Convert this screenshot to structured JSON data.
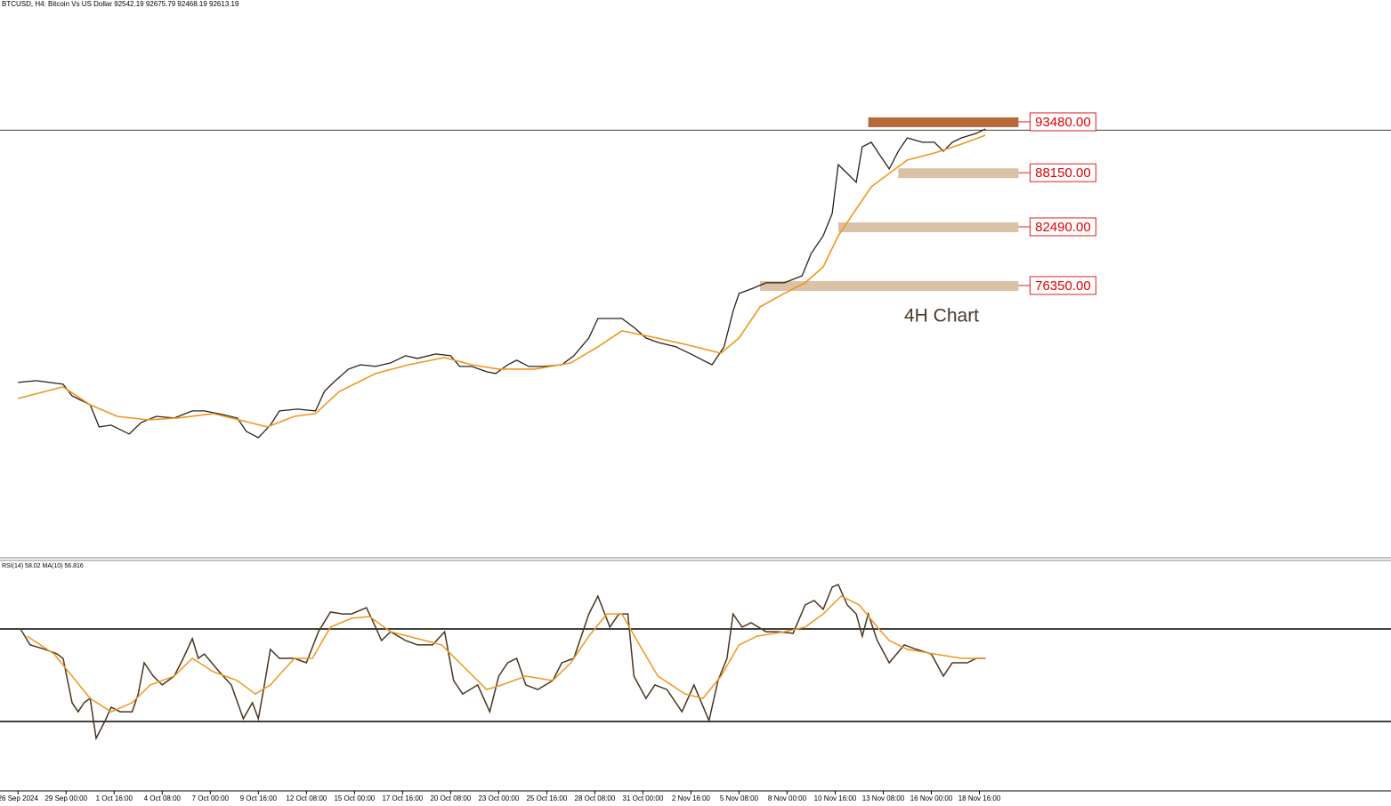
{
  "chart_data": [
    {
      "type": "line",
      "title": "BTCUSD, H4:  Bitcoin Vs US Dollar  92542.19 92675.79 92468.19 92613.19",
      "annotation": "4H Chart",
      "xlim": [
        -6,
        457
      ],
      "ylim": [
        48000,
        105300
      ],
      "price_line": 92613.19,
      "levels": [
        {
          "value": 93480,
          "label": "93480.00",
          "from": 283,
          "to": 333,
          "color": "#b8693c"
        },
        {
          "value": 88150,
          "label": "88150.00",
          "from": 293,
          "to": 333,
          "color": "#d9c2a5"
        },
        {
          "value": 82490,
          "label": "82490.00",
          "from": 273,
          "to": 333,
          "color": "#d9c2a5"
        },
        {
          "value": 76350,
          "label": "76350.00",
          "from": 247,
          "to": 333,
          "color": "#d9c2a5"
        }
      ],
      "series": [
        {
          "color": "#2b2118",
          "x": [
            0,
            6,
            15,
            18,
            24,
            27,
            31,
            37,
            41,
            46,
            52,
            58,
            62,
            68,
            73,
            76,
            80,
            84,
            87,
            93,
            99,
            102,
            105,
            110,
            114,
            119,
            124,
            129,
            133,
            139,
            144,
            147,
            151,
            156,
            159,
            163,
            166,
            170,
            175,
            181,
            185,
            190,
            193,
            197,
            201,
            205,
            209,
            213,
            219,
            224,
            228,
            231,
            235,
            238,
            240,
            244,
            249,
            255,
            261,
            264,
            268,
            271,
            273,
            276,
            279,
            281,
            284,
            287,
            290,
            293,
            296,
            301,
            305,
            308,
            311,
            314,
            319,
            322
          ],
          "values": [
            66200,
            66390,
            66020,
            64800,
            63870,
            61550,
            61730,
            60800,
            62010,
            62660,
            62480,
            63220,
            63220,
            62850,
            62480,
            61080,
            60430,
            61730,
            63220,
            63410,
            63220,
            65270,
            66200,
            67600,
            68060,
            67880,
            68250,
            69000,
            68720,
            69180,
            69000,
            67880,
            67880,
            67320,
            67130,
            68060,
            68530,
            67880,
            67880,
            68060,
            69000,
            70860,
            72900,
            72900,
            72900,
            71970,
            70860,
            70390,
            69930,
            69180,
            68530,
            68060,
            69930,
            73650,
            75510,
            75980,
            76630,
            76630,
            77370,
            79700,
            81560,
            83890,
            89010,
            88080,
            87150,
            90870,
            91340,
            89940,
            88550,
            90410,
            91800,
            91340,
            91340,
            90410,
            91340,
            91800,
            92270,
            92740
          ]
        },
        {
          "color": "#f0961e",
          "x": [
            0,
            15,
            24,
            33,
            43,
            53,
            65,
            77,
            83,
            92,
            99,
            107,
            119,
            130,
            142,
            151,
            160,
            172,
            184,
            193,
            201,
            210,
            222,
            234,
            240,
            247,
            255,
            262,
            268,
            273,
            279,
            284,
            290,
            296,
            305,
            314,
            322
          ],
          "values": [
            64530,
            65740,
            63870,
            62660,
            62290,
            62480,
            62940,
            62010,
            61550,
            62660,
            62940,
            65270,
            67130,
            68060,
            68810,
            68060,
            67600,
            67600,
            68250,
            69930,
            71600,
            71040,
            70200,
            69270,
            70860,
            74120,
            75510,
            76630,
            78300,
            81560,
            84360,
            86680,
            88080,
            89480,
            90220,
            91150,
            92080
          ]
        }
      ]
    },
    {
      "type": "line",
      "title": "RSI(14) 58.02 MA(10) 56.816",
      "xlim": [
        -6,
        457
      ],
      "ylim": [
        0,
        100
      ],
      "hlines": [
        70,
        30
      ],
      "xticks": [
        {
          "value": 0,
          "label": "26 Sep 2024"
        },
        {
          "value": 16,
          "label": "29 Sep 00:00"
        },
        {
          "value": 32,
          "label": "1 Oct 16:00"
        },
        {
          "value": 48,
          "label": "4 Oct 08:00"
        },
        {
          "value": 64,
          "label": "7 Oct 00:00"
        },
        {
          "value": 80,
          "label": "9 Oct 16:00"
        },
        {
          "value": 96,
          "label": "12 Oct 08:00"
        },
        {
          "value": 112,
          "label": "15 Oct 00:00"
        },
        {
          "value": 128,
          "label": "17 Oct 16:00"
        },
        {
          "value": 144,
          "label": "20 Oct 08:00"
        },
        {
          "value": 160,
          "label": "23 Oct 00:00"
        },
        {
          "value": 176,
          "label": "25 Oct 16:00"
        },
        {
          "value": 192,
          "label": "28 Oct 08:00"
        },
        {
          "value": 208,
          "label": "31 Oct 00:00"
        },
        {
          "value": 224,
          "label": "2 Nov 16:00"
        },
        {
          "value": 240,
          "label": "5 Nov 08:00"
        },
        {
          "value": 256,
          "label": "8 Nov 00:00"
        },
        {
          "value": 272,
          "label": "10 Nov 16:00"
        },
        {
          "value": 288,
          "label": "13 Nov 08:00"
        },
        {
          "value": 304,
          "label": "16 Nov 00:00"
        },
        {
          "value": 320,
          "label": "18 Nov 16:00"
        }
      ],
      "series": [
        {
          "color": "#4a3520",
          "x": [
            1,
            4,
            9,
            13,
            15,
            18,
            20,
            22,
            24,
            26,
            29,
            31,
            34,
            38,
            40,
            42,
            45,
            48,
            52,
            55,
            58,
            60,
            62,
            67,
            71,
            75,
            78,
            80,
            82,
            84,
            87,
            92,
            96,
            100,
            104,
            108,
            111,
            116,
            119,
            121,
            124,
            129,
            133,
            138,
            142,
            145,
            148,
            153,
            157,
            160,
            163,
            166,
            169,
            173,
            178,
            181,
            185,
            190,
            193,
            197,
            200,
            203,
            205,
            209,
            212,
            216,
            221,
            225,
            230,
            233,
            236,
            238,
            241,
            244,
            249,
            253,
            258,
            262,
            265,
            268,
            271,
            273,
            276,
            279,
            281,
            283,
            286,
            290,
            295,
            299,
            304,
            308,
            311,
            316,
            319,
            322
          ],
          "values": [
            69.6,
            63.1,
            61.2,
            59.2,
            57.3,
            38.1,
            34.2,
            38.1,
            40.0,
            22.7,
            30.4,
            36.2,
            34.2,
            34.2,
            41.9,
            55.4,
            49.6,
            45.8,
            49.6,
            57.3,
            65.8,
            57.3,
            59.2,
            51.5,
            45.8,
            31.2,
            38.1,
            31.2,
            45.8,
            61.2,
            57.3,
            57.3,
            55.4,
            68.8,
            77.3,
            76.5,
            76.5,
            79.2,
            70.8,
            65.0,
            68.8,
            65.0,
            63.1,
            63.1,
            68.8,
            47.7,
            41.9,
            45.8,
            34.2,
            49.6,
            55.4,
            57.3,
            45.8,
            43.8,
            47.7,
            55.4,
            57.3,
            76.5,
            84.2,
            70.8,
            76.5,
            76.5,
            49.6,
            40.0,
            45.8,
            43.8,
            34.2,
            45.8,
            30.4,
            47.7,
            57.3,
            76.5,
            70.8,
            72.7,
            68.8,
            68.8,
            68.1,
            80.4,
            82.3,
            78.5,
            88.1,
            89.2,
            80.4,
            76.5,
            66.9,
            76.5,
            65.0,
            55.4,
            63.1,
            61.2,
            59.2,
            49.6,
            55.4,
            55.4,
            57.3,
            57.3
          ]
        },
        {
          "color": "#f0961e",
          "x": [
            3,
            12,
            18,
            24,
            31,
            38,
            44,
            52,
            58,
            65,
            73,
            79,
            84,
            92,
            98,
            104,
            111,
            117,
            124,
            133,
            141,
            147,
            156,
            161,
            169,
            178,
            184,
            190,
            196,
            201,
            206,
            213,
            222,
            228,
            234,
            240,
            246,
            255,
            262,
            268,
            274,
            280,
            286,
            290,
            296,
            305,
            314,
            322
          ],
          "values": [
            66.9,
            59.2,
            49.6,
            40.0,
            34.2,
            38.1,
            45.8,
            49.6,
            57.3,
            51.5,
            47.7,
            41.9,
            45.8,
            57.3,
            57.3,
            70.8,
            74.6,
            75.4,
            68.8,
            65.8,
            63.1,
            55.4,
            43.8,
            45.8,
            49.6,
            47.7,
            55.4,
            66.9,
            76.5,
            76.5,
            65.0,
            49.6,
            41.9,
            40.0,
            49.6,
            63.1,
            66.9,
            68.8,
            70.8,
            76.5,
            84.2,
            80.4,
            70.8,
            65.0,
            61.2,
            59.2,
            57.3,
            57.3
          ]
        }
      ]
    }
  ]
}
